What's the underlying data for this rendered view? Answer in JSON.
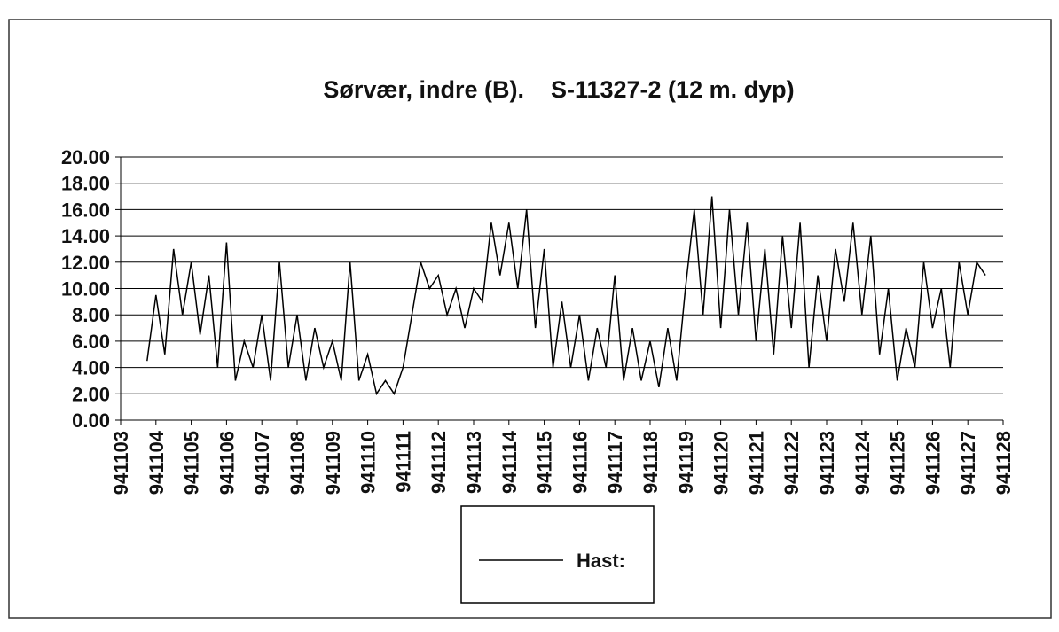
{
  "chart_data": {
    "type": "line",
    "title": "Sørvær, indre (B).    S-11327-2 (12 m. dyp)",
    "x": [
      941103.75,
      941104,
      941104.25,
      941104.5,
      941104.75,
      941105,
      941105.25,
      941105.5,
      941105.75,
      941106,
      941106.25,
      941106.5,
      941106.75,
      941107,
      941107.25,
      941107.5,
      941107.75,
      941108,
      941108.25,
      941108.5,
      941108.75,
      941109,
      941109.25,
      941109.5,
      941109.75,
      941110,
      941110.25,
      941110.5,
      941110.75,
      941111,
      941111.25,
      941111.5,
      941111.75,
      941112,
      941112.25,
      941112.5,
      941112.75,
      941113,
      941113.25,
      941113.5,
      941113.75,
      941114,
      941114.25,
      941114.5,
      941114.75,
      941115,
      941115.25,
      941115.5,
      941115.75,
      941116,
      941116.25,
      941116.5,
      941116.75,
      941117,
      941117.25,
      941117.5,
      941117.75,
      941118,
      941118.25,
      941118.5,
      941118.75,
      941119,
      941119.25,
      941119.5,
      941119.75,
      941120,
      941120.25,
      941120.5,
      941120.75,
      941121,
      941121.25,
      941121.5,
      941121.75,
      941122,
      941122.25,
      941122.5,
      941122.75,
      941123,
      941123.25,
      941123.5,
      941123.75,
      941124,
      941124.25,
      941124.5,
      941124.75,
      941125,
      941125.25,
      941125.5,
      941125.75,
      941126,
      941126.25,
      941126.5,
      941126.75,
      941127,
      941127.25,
      941127.5
    ],
    "series": [
      {
        "name": "Hast:",
        "color": "#000000",
        "values": [
          4.5,
          9.5,
          5,
          13,
          8,
          12,
          6.5,
          11,
          4,
          13.5,
          3,
          6,
          4,
          8,
          3,
          12,
          4,
          8,
          3,
          7,
          4,
          6,
          3,
          12,
          3,
          5,
          2,
          3,
          2,
          4,
          8,
          12,
          10,
          11,
          8,
          10,
          7,
          10,
          9,
          15,
          11,
          15,
          10,
          16,
          7,
          13,
          4,
          9,
          4,
          8,
          3,
          7,
          4,
          11,
          3,
          7,
          3,
          6,
          2.5,
          7,
          3,
          10,
          16,
          8,
          17,
          7,
          16,
          8,
          15,
          6,
          13,
          5,
          14,
          7,
          15,
          4,
          11,
          6,
          13,
          9,
          15,
          8,
          14,
          5,
          10,
          3,
          7,
          4,
          12,
          7,
          10,
          4,
          12,
          8,
          12,
          11
        ]
      }
    ],
    "xlim": [
      941103,
      941128
    ],
    "xticks": [
      941103,
      941104,
      941105,
      941106,
      941107,
      941108,
      941109,
      941110,
      941111,
      941112,
      941113,
      941114,
      941115,
      941116,
      941117,
      941118,
      941119,
      941120,
      941121,
      941122,
      941123,
      941124,
      941125,
      941126,
      941127,
      941128
    ],
    "ylim": [
      0,
      20
    ],
    "yticks": [
      {
        "value": 0,
        "label": "0.00"
      },
      {
        "value": 2,
        "label": "2.00"
      },
      {
        "value": 4,
        "label": "4.00"
      },
      {
        "value": 6,
        "label": "6.00"
      },
      {
        "value": 8,
        "label": "8.00"
      },
      {
        "value": 10,
        "label": "10.00"
      },
      {
        "value": 12,
        "label": "12.00"
      },
      {
        "value": 14,
        "label": "14.00"
      },
      {
        "value": 16,
        "label": "16.00"
      },
      {
        "value": 18,
        "label": "18.00"
      },
      {
        "value": 20,
        "label": "20.00"
      }
    ],
    "grid": true,
    "legend": "bottom"
  }
}
